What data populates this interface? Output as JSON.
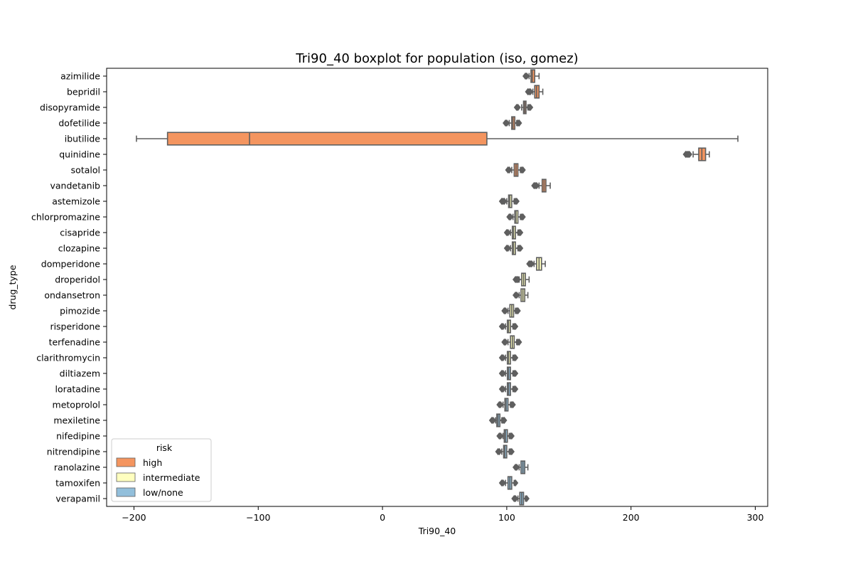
{
  "chart_data": {
    "type": "boxplot",
    "orientation": "horizontal",
    "title": "Tri90_40 boxplot for population (iso, gomez)",
    "xlabel": "Tri90_40",
    "ylabel": "drug_type",
    "xlim": [
      -222,
      310
    ],
    "xticks": [
      -200,
      -100,
      0,
      100,
      200,
      300
    ],
    "xtick_labels": [
      "−200",
      "−100",
      "0",
      "100",
      "200",
      "300"
    ],
    "grid": false,
    "legend": {
      "title": "risk",
      "position": "lower-left",
      "entries": [
        {
          "label": "high",
          "color": "#f4955f"
        },
        {
          "label": "intermediate",
          "color": "#ffffbf"
        },
        {
          "label": "low/none",
          "color": "#92bfdb"
        }
      ]
    },
    "colors": {
      "line": "#5f5f5f",
      "outlier": "#5f5f5f"
    },
    "drugs": [
      {
        "name": "azimilide",
        "risk": "high",
        "whislo": 118,
        "q1": 119.5,
        "median": 120.5,
        "q3": 122.5,
        "whishi": 126,
        "outliers": [
          115,
          116
        ]
      },
      {
        "name": "bepridil",
        "risk": "high",
        "whislo": 121,
        "q1": 122.5,
        "median": 124,
        "q3": 126,
        "whishi": 129,
        "outliers": [
          117,
          118,
          119
        ]
      },
      {
        "name": "disopyramide",
        "risk": "high",
        "whislo": 112,
        "q1": 113.5,
        "median": 114.5,
        "q3": 115.5,
        "whishi": 117,
        "outliers": [
          108,
          109,
          118,
          119
        ]
      },
      {
        "name": "dofetilide",
        "risk": "high",
        "whislo": 102,
        "q1": 104,
        "median": 105,
        "q3": 106.5,
        "whishi": 108,
        "outliers": [
          99,
          100,
          109,
          110
        ]
      },
      {
        "name": "ibutilide",
        "risk": "high",
        "whislo": -198,
        "q1": -173,
        "median": -107,
        "q3": 84,
        "whishi": 286,
        "outliers": []
      },
      {
        "name": "quinidine",
        "risk": "high",
        "whislo": 250,
        "q1": 254.5,
        "median": 257,
        "q3": 260,
        "whishi": 263,
        "outliers": [
          244,
          245,
          246,
          247
        ]
      },
      {
        "name": "sotalol",
        "risk": "high",
        "whislo": 104,
        "q1": 106,
        "median": 107.5,
        "q3": 109,
        "whishi": 111,
        "outliers": [
          101,
          102,
          112,
          113
        ]
      },
      {
        "name": "vandetanib",
        "risk": "high",
        "whislo": 126,
        "q1": 128.5,
        "median": 130,
        "q3": 131.5,
        "whishi": 135,
        "outliers": [
          122,
          123,
          124
        ]
      },
      {
        "name": "astemizole",
        "risk": "intermediate",
        "whislo": 100,
        "q1": 101.5,
        "median": 102.5,
        "q3": 104,
        "whishi": 106,
        "outliers": [
          96,
          97,
          98,
          107,
          108
        ]
      },
      {
        "name": "chlorpromazine",
        "risk": "intermediate",
        "whislo": 105,
        "q1": 106.5,
        "median": 107.5,
        "q3": 109,
        "whishi": 111,
        "outliers": [
          102,
          103,
          112,
          113
        ]
      },
      {
        "name": "cisapride",
        "risk": "intermediate",
        "whislo": 103,
        "q1": 104.5,
        "median": 105.5,
        "q3": 107,
        "whishi": 109,
        "outliers": [
          100,
          101,
          110,
          111
        ]
      },
      {
        "name": "clozapine",
        "risk": "intermediate",
        "whislo": 103,
        "q1": 104.5,
        "median": 105.5,
        "q3": 107,
        "whishi": 109,
        "outliers": [
          100,
          101,
          110,
          111
        ]
      },
      {
        "name": "domperidone",
        "risk": "intermediate",
        "whislo": 122,
        "q1": 124,
        "median": 126,
        "q3": 128,
        "whishi": 131,
        "outliers": [
          118,
          119,
          120
        ]
      },
      {
        "name": "droperidol",
        "risk": "intermediate",
        "whislo": 110,
        "q1": 112,
        "median": 113.5,
        "q3": 115,
        "whishi": 118,
        "outliers": [
          107,
          108,
          109
        ]
      },
      {
        "name": "ondansetron",
        "risk": "intermediate",
        "whislo": 110,
        "q1": 111.5,
        "median": 113,
        "q3": 114.5,
        "whishi": 117,
        "outliers": [
          107,
          108
        ]
      },
      {
        "name": "pimozide",
        "risk": "intermediate",
        "whislo": 101,
        "q1": 102.5,
        "median": 104,
        "q3": 105.5,
        "whishi": 107,
        "outliers": [
          98,
          99,
          108,
          109
        ]
      },
      {
        "name": "risperidone",
        "risk": "intermediate",
        "whislo": 99,
        "q1": 100.5,
        "median": 101.5,
        "q3": 103,
        "whishi": 105,
        "outliers": [
          96,
          97,
          106,
          107
        ]
      },
      {
        "name": "terfenadine",
        "risk": "intermediate",
        "whislo": 101,
        "q1": 103,
        "median": 104.5,
        "q3": 106,
        "whishi": 108,
        "outliers": [
          98,
          99,
          109,
          110
        ]
      },
      {
        "name": "clarithromycin",
        "risk": "intermediate",
        "whislo": 99,
        "q1": 100.5,
        "median": 101.5,
        "q3": 103,
        "whishi": 105,
        "outliers": [
          96,
          97,
          106,
          107
        ]
      },
      {
        "name": "diltiazem",
        "risk": "low/none",
        "whislo": 99,
        "q1": 100.5,
        "median": 101.5,
        "q3": 103,
        "whishi": 105,
        "outliers": [
          96,
          97,
          106,
          107
        ]
      },
      {
        "name": "loratadine",
        "risk": "low/none",
        "whislo": 99,
        "q1": 100.5,
        "median": 101.5,
        "q3": 103,
        "whishi": 105,
        "outliers": [
          96,
          97,
          106,
          107
        ]
      },
      {
        "name": "metoprolol",
        "risk": "low/none",
        "whislo": 97,
        "q1": 98.5,
        "median": 99.5,
        "q3": 101,
        "whishi": 103,
        "outliers": [
          94,
          95,
          104,
          105
        ]
      },
      {
        "name": "mexiletine",
        "risk": "low/none",
        "whislo": 91,
        "q1": 92,
        "median": 93,
        "q3": 94.5,
        "whishi": 96,
        "outliers": [
          88,
          89,
          97,
          98
        ]
      },
      {
        "name": "nifedipine",
        "risk": "low/none",
        "whislo": 97,
        "q1": 98,
        "median": 99,
        "q3": 100.5,
        "whishi": 102,
        "outliers": [
          94,
          95,
          103,
          104
        ]
      },
      {
        "name": "nitrendipine",
        "risk": "low/none",
        "whislo": 96,
        "q1": 97.5,
        "median": 98.5,
        "q3": 100,
        "whishi": 102,
        "outliers": [
          93,
          94,
          103,
          104
        ]
      },
      {
        "name": "ranolazine",
        "risk": "low/none",
        "whislo": 110,
        "q1": 111.5,
        "median": 113,
        "q3": 114.5,
        "whishi": 117,
        "outliers": [
          107,
          108
        ]
      },
      {
        "name": "tamoxifen",
        "risk": "low/none",
        "whislo": 99,
        "q1": 101,
        "median": 102.5,
        "q3": 104,
        "whishi": 106,
        "outliers": [
          96,
          97,
          107
        ]
      },
      {
        "name": "verapamil",
        "risk": "low/none",
        "whislo": 109,
        "q1": 110.5,
        "median": 112,
        "q3": 113.5,
        "whishi": 115,
        "outliers": [
          106,
          107,
          116
        ]
      }
    ]
  }
}
